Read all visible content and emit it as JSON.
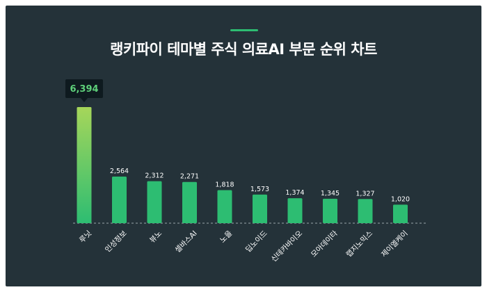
{
  "title": "랭키파이 테마별 주식 의료AI 부문 순위 차트",
  "colors": {
    "background": "#243239",
    "bar": "#2dbd72",
    "bar_top_highlight": "#a6d65a",
    "accent": "#2dbd72",
    "tooltip_bg": "#0e1a1f",
    "tooltip_text": "#5ed07a",
    "text": "#ffffff"
  },
  "chart_data": {
    "type": "bar",
    "title": "랭키파이 테마별 주식 의료AI 부문 순위 차트",
    "categories": [
      "루닛",
      "인성정보",
      "뷰노",
      "셀바스AI",
      "노을",
      "딥노이드",
      "신테카바이오",
      "모아데이타",
      "랩지노믹스",
      "제이엘케이"
    ],
    "values": [
      6394,
      2564,
      2312,
      2271,
      1818,
      1573,
      1374,
      1345,
      1327,
      1020
    ],
    "value_labels": [
      "6,394",
      "2,564",
      "2,312",
      "2,271",
      "1,818",
      "1,573",
      "1,374",
      "1,345",
      "1,327",
      "1,020"
    ],
    "highlight_index": 0,
    "ylim": [
      0,
      6394
    ],
    "grid": false,
    "legend": "none"
  }
}
